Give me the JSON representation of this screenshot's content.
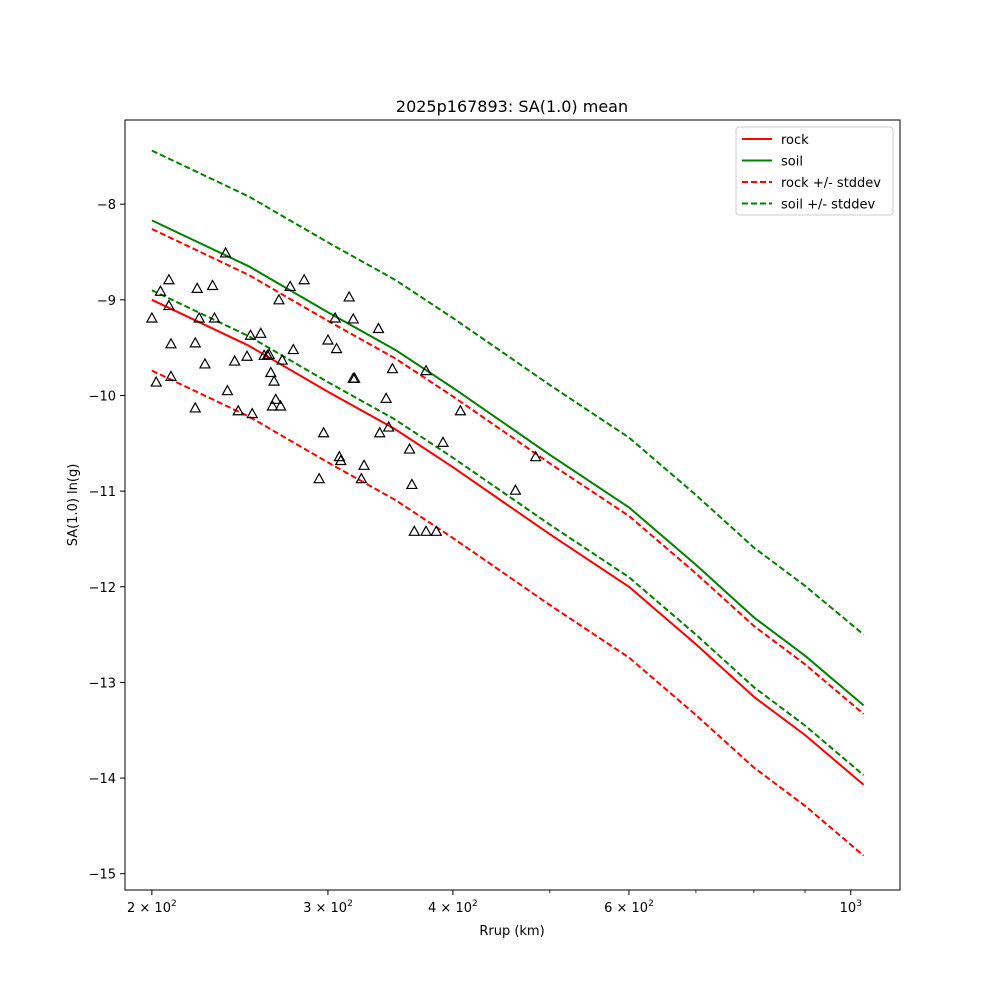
{
  "chart_data": {
    "type": "line",
    "title": "2025p167893: SA(1.0) mean",
    "xlabel": "Rrup (km)",
    "ylabel": "SA(1.0) ln(g)",
    "xscale": "log",
    "xlim": [
      188,
      1120
    ],
    "ylim": [
      -15.17,
      -7.12
    ],
    "x_ticks": [
      {
        "value": 200,
        "base": "2 × 10",
        "exp": "2"
      },
      {
        "value": 300,
        "base": "3 × 10",
        "exp": "2"
      },
      {
        "value": 400,
        "base": "4 × 10",
        "exp": "2"
      },
      {
        "value": 600,
        "base": "6 × 10",
        "exp": "2"
      },
      {
        "value": 1000,
        "base": "10",
        "exp": "3"
      }
    ],
    "x_minor_ticks": [
      500,
      700,
      800,
      900
    ],
    "y_ticks": [
      -8,
      -9,
      -10,
      -11,
      -12,
      -13,
      -14,
      -15
    ],
    "grid": false,
    "legend_position": "top-right",
    "series": [
      {
        "name": "rock",
        "color": "#ff0000",
        "style": "solid",
        "x": [
          200,
          250,
          300,
          350,
          400,
          500,
          600,
          700,
          800,
          900,
          1030
        ],
        "y": [
          -9.0,
          -9.48,
          -9.96,
          -10.35,
          -10.75,
          -11.45,
          -12.0,
          -12.6,
          -13.15,
          -13.55,
          -14.07
        ]
      },
      {
        "name": "soil",
        "color": "#008000",
        "style": "solid",
        "x": [
          200,
          250,
          300,
          350,
          400,
          500,
          600,
          700,
          800,
          900,
          1030
        ],
        "y": [
          -8.17,
          -8.65,
          -9.13,
          -9.52,
          -9.92,
          -10.62,
          -11.17,
          -11.77,
          -12.32,
          -12.72,
          -13.24
        ]
      },
      {
        "name": "rock +/- stddev",
        "color": "#ff0000",
        "style": "dashed",
        "x": [
          200,
          250,
          300,
          350,
          400,
          500,
          600,
          700,
          800,
          900,
          1030
        ],
        "y": [
          -8.26,
          -8.74,
          -9.22,
          -9.61,
          -10.01,
          -10.71,
          -11.26,
          -11.86,
          -12.41,
          -12.81,
          -13.33
        ]
      },
      {
        "color": "#ff0000",
        "style": "dashed",
        "x": [
          200,
          250,
          300,
          350,
          400,
          500,
          600,
          700,
          800,
          900,
          1030
        ],
        "y": [
          -9.74,
          -10.22,
          -10.7,
          -11.09,
          -11.49,
          -12.19,
          -12.74,
          -13.34,
          -13.89,
          -14.29,
          -14.81
        ]
      },
      {
        "name": "soil +/- stddev",
        "color": "#008000",
        "style": "dashed",
        "x": [
          200,
          250,
          300,
          350,
          400,
          500,
          600,
          700,
          800,
          900,
          1030
        ],
        "y": [
          -7.44,
          -7.92,
          -8.4,
          -8.79,
          -9.19,
          -9.89,
          -10.44,
          -11.04,
          -11.59,
          -11.99,
          -12.5
        ]
      },
      {
        "color": "#008000",
        "style": "dashed",
        "x": [
          200,
          250,
          300,
          350,
          400,
          500,
          600,
          700,
          800,
          900,
          1030
        ],
        "y": [
          -8.9,
          -9.38,
          -9.86,
          -10.25,
          -10.65,
          -11.35,
          -11.9,
          -12.5,
          -13.05,
          -13.45,
          -13.97
        ]
      }
    ],
    "observations": {
      "marker": "triangle",
      "color": "#000000",
      "points": [
        [
          200,
          -9.19
        ],
        [
          202,
          -9.86
        ],
        [
          204,
          -8.91
        ],
        [
          208,
          -8.79
        ],
        [
          208,
          -9.06
        ],
        [
          209,
          -9.46
        ],
        [
          209,
          -9.8
        ],
        [
          221,
          -9.45
        ],
        [
          221,
          -10.13
        ],
        [
          222,
          -8.88
        ],
        [
          223,
          -9.19
        ],
        [
          226,
          -9.67
        ],
        [
          230,
          -8.85
        ],
        [
          231,
          -9.19
        ],
        [
          237,
          -8.51
        ],
        [
          238,
          -9.95
        ],
        [
          242,
          -9.64
        ],
        [
          244,
          -10.16
        ],
        [
          249,
          -9.59
        ],
        [
          251,
          -9.37
        ],
        [
          252,
          -10.19
        ],
        [
          257,
          -9.35
        ],
        [
          259,
          -9.58
        ],
        [
          261,
          -9.58
        ],
        [
          262,
          -9.57
        ],
        [
          263,
          -9.76
        ],
        [
          264,
          -10.11
        ],
        [
          265,
          -9.85
        ],
        [
          266,
          -10.04
        ],
        [
          268,
          -9.0
        ],
        [
          269,
          -10.11
        ],
        [
          270,
          -9.63
        ],
        [
          275,
          -8.86
        ],
        [
          277,
          -9.52
        ],
        [
          284,
          -8.79
        ],
        [
          294,
          -10.87
        ],
        [
          297,
          -10.39
        ],
        [
          300,
          -9.42
        ],
        [
          305,
          -9.19
        ],
        [
          306,
          -9.51
        ],
        [
          308,
          -10.64
        ],
        [
          309,
          -10.68
        ],
        [
          315,
          -8.97
        ],
        [
          318,
          -9.2
        ],
        [
          318,
          -9.82
        ],
        [
          319,
          -9.82
        ],
        [
          324,
          -10.87
        ],
        [
          326,
          -10.73
        ],
        [
          337,
          -9.3
        ],
        [
          338,
          -10.39
        ],
        [
          343,
          -10.03
        ],
        [
          345,
          -10.33
        ],
        [
          348,
          -9.72
        ],
        [
          362,
          -10.56
        ],
        [
          364,
          -10.93
        ],
        [
          366,
          -11.42
        ],
        [
          376,
          -9.74
        ],
        [
          376,
          -11.42
        ],
        [
          385,
          -11.42
        ],
        [
          391,
          -10.49
        ],
        [
          407,
          -10.16
        ],
        [
          462,
          -10.99
        ],
        [
          484,
          -10.64
        ]
      ]
    }
  }
}
